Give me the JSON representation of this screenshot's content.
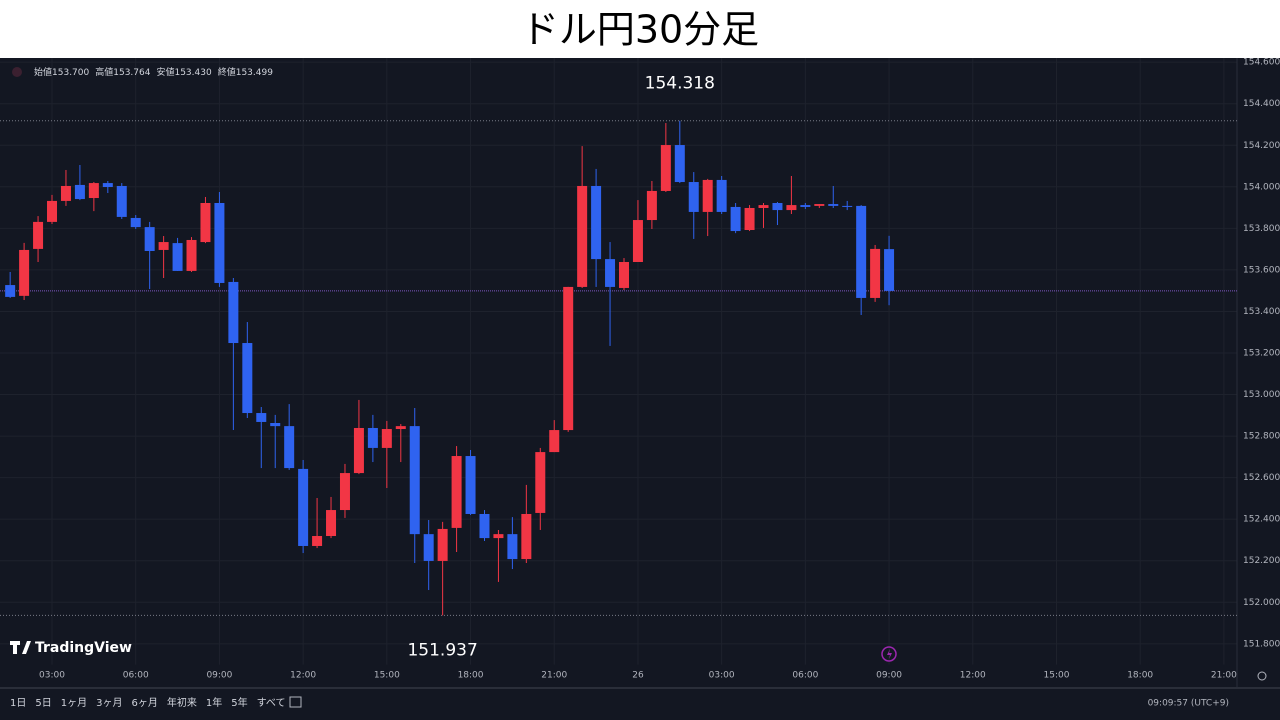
{
  "chart_data": {
    "type": "candlestick",
    "title": "ドル円30分足",
    "up_color": "#f23645",
    "down_color": "#2f63f0",
    "x": [
      1.5,
      2,
      2.5,
      3,
      3.5,
      4,
      4.5,
      5,
      5.5,
      6,
      6.5,
      7,
      7.5,
      8,
      8.5,
      9,
      9.5,
      10,
      10.5,
      11,
      11.5,
      12,
      12.5,
      13,
      13.5,
      14,
      14.5,
      15,
      15.5,
      16,
      16.5,
      17,
      17.5,
      18,
      18.5,
      19,
      19.5,
      20,
      20.5,
      21,
      21.5,
      22,
      22.5,
      23,
      23.5,
      24,
      24.5,
      25,
      25.5,
      26,
      26.5,
      27,
      27.5,
      28,
      28.5,
      29,
      29.5,
      30,
      30.5,
      31,
      31.5,
      32,
      32.5,
      33
    ],
    "open": [
      153.527,
      153.475,
      153.701,
      153.831,
      153.932,
      154.009,
      153.946,
      154.018,
      154.004,
      153.85,
      153.806,
      153.696,
      153.729,
      153.595,
      153.734,
      153.922,
      153.542,
      153.248,
      152.911,
      152.863,
      152.848,
      152.642,
      152.271,
      152.319,
      152.444,
      152.622,
      152.839,
      152.743,
      152.834,
      152.848,
      152.328,
      152.199,
      152.358,
      152.704,
      152.425,
      152.309,
      152.328,
      152.208,
      152.43,
      152.723,
      152.829,
      153.518,
      154.004,
      153.652,
      153.513,
      153.638,
      153.84,
      153.98,
      154.201,
      154.023,
      153.879,
      154.033,
      153.903,
      153.792,
      153.898,
      153.922,
      153.888,
      153.912,
      153.908,
      153.917,
      153.908,
      153.908,
      153.465,
      153.7
    ],
    "high": [
      153.59,
      153.73,
      153.859,
      153.961,
      154.081,
      154.105,
      154.023,
      154.028,
      154.018,
      153.864,
      153.831,
      153.763,
      153.754,
      153.758,
      153.951,
      153.975,
      153.561,
      153.349,
      152.94,
      152.902,
      152.954,
      152.685,
      152.502,
      152.507,
      152.666,
      152.974,
      152.902,
      152.873,
      152.858,
      152.935,
      152.396,
      152.387,
      152.752,
      152.733,
      152.444,
      152.348,
      152.41,
      152.565,
      152.743,
      152.877,
      153.518,
      154.196,
      154.086,
      153.734,
      153.657,
      153.936,
      154.028,
      154.307,
      154.318,
      154.071,
      154.038,
      154.052,
      153.922,
      153.912,
      153.922,
      153.927,
      154.052,
      153.922,
      153.917,
      154.004,
      153.932,
      153.912,
      153.72,
      153.764
    ],
    "low": [
      153.465,
      153.455,
      153.638,
      153.821,
      153.908,
      153.936,
      153.883,
      153.97,
      153.845,
      153.797,
      153.508,
      153.561,
      153.595,
      153.59,
      153.729,
      153.518,
      152.829,
      152.887,
      152.646,
      152.646,
      152.637,
      152.237,
      152.261,
      152.309,
      152.406,
      152.617,
      152.675,
      152.55,
      152.675,
      152.189,
      152.059,
      151.937,
      152.242,
      152.42,
      152.295,
      152.098,
      152.16,
      152.189,
      152.348,
      152.723,
      152.82,
      153.513,
      153.518,
      153.234,
      153.503,
      153.638,
      153.797,
      153.975,
      154.018,
      153.749,
      153.763,
      153.869,
      153.777,
      153.787,
      153.802,
      153.816,
      153.869,
      153.893,
      153.898,
      153.898,
      153.888,
      153.383,
      153.446,
      153.43
    ],
    "close": [
      153.47,
      153.696,
      153.831,
      153.932,
      154.004,
      153.941,
      154.018,
      153.999,
      153.855,
      153.806,
      153.691,
      153.734,
      153.595,
      153.744,
      153.922,
      153.537,
      153.248,
      152.911,
      152.868,
      152.848,
      152.646,
      152.271,
      152.319,
      152.444,
      152.622,
      152.839,
      152.743,
      152.834,
      152.848,
      152.328,
      152.199,
      152.353,
      152.704,
      152.425,
      152.309,
      152.328,
      152.208,
      152.425,
      152.723,
      152.829,
      153.518,
      154.004,
      153.652,
      153.518,
      153.638,
      153.84,
      153.98,
      154.201,
      154.023,
      153.879,
      154.033,
      153.879,
      153.787,
      153.898,
      153.912,
      153.888,
      153.912,
      153.903,
      153.917,
      153.908,
      153.905,
      153.465,
      153.701,
      153.499
    ],
    "xlim": [
      1.136,
      45.47
    ],
    "ylim": [
      151.7,
      154.62
    ],
    "xticks": [
      {
        "value": 3,
        "label": "03:00"
      },
      {
        "value": 6,
        "label": "06:00"
      },
      {
        "value": 9,
        "label": "09:00"
      },
      {
        "value": 12,
        "label": "12:00"
      },
      {
        "value": 15,
        "label": "15:00"
      },
      {
        "value": 18,
        "label": "18:00"
      },
      {
        "value": 21,
        "label": "21:00"
      },
      {
        "value": 24,
        "label": "26"
      },
      {
        "value": 27,
        "label": "03:00"
      },
      {
        "value": 30,
        "label": "06:00"
      },
      {
        "value": 33,
        "label": "09:00"
      },
      {
        "value": 36,
        "label": "12:00"
      },
      {
        "value": 39,
        "label": "15:00"
      },
      {
        "value": 42,
        "label": "18:00"
      },
      {
        "value": 45,
        "label": "21:00"
      }
    ],
    "yticks": [
      {
        "value": 151.8,
        "label": "151.800"
      },
      {
        "value": 152,
        "label": "152.000"
      },
      {
        "value": 152.2,
        "label": "152.200"
      },
      {
        "value": 152.4,
        "label": "152.400"
      },
      {
        "value": 152.6,
        "label": "152.600"
      },
      {
        "value": 152.8,
        "label": "152.800"
      },
      {
        "value": 153,
        "label": "153.000"
      },
      {
        "value": 153.2,
        "label": "153.200"
      },
      {
        "value": 153.4,
        "label": "153.400"
      },
      {
        "value": 153.6,
        "label": "153.600"
      },
      {
        "value": 153.8,
        "label": "153.800"
      },
      {
        "value": 154,
        "label": "154.000"
      },
      {
        "value": 154.2,
        "label": "154.200"
      },
      {
        "value": 154.4,
        "label": "154.400"
      },
      {
        "value": 154.6,
        "label": "154.600"
      }
    ],
    "grid": true,
    "annotations": [
      {
        "value": 154.318,
        "label": "154.318"
      },
      {
        "value": 151.937,
        "label": "151.937"
      }
    ],
    "ohlc_legend": [
      {
        "label": "始値",
        "value": "153.700"
      },
      {
        "label": "高値",
        "value": "153.764"
      },
      {
        "label": "安値",
        "value": "153.430"
      },
      {
        "label": "終値",
        "value": "153.499"
      }
    ],
    "watermark": "TradingView"
  },
  "toolbar": {
    "ranges": [
      "1日",
      "5日",
      "1ヶ月",
      "3ヶ月",
      "6ヶ月",
      "年初来",
      "1年",
      "5年",
      "すべて"
    ],
    "clock": "09:09:57 (UTC+9)"
  }
}
